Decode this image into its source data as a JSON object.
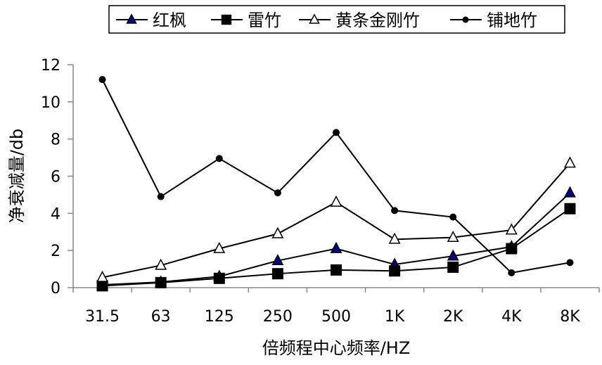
{
  "chart_data": {
    "type": "line",
    "title": "",
    "xlabel": "倍频程中心频率/HZ",
    "ylabel": "净衰减量/db",
    "categories": [
      "31.5",
      "63",
      "125",
      "250",
      "500",
      "1K",
      "2K",
      "4K",
      "8K"
    ],
    "ylim": [
      0,
      12
    ],
    "yticks": [
      0,
      2,
      4,
      6,
      8,
      10,
      12
    ],
    "grid": false,
    "legend_position": "top",
    "series": [
      {
        "name": "红枫",
        "marker": "triangle-filled",
        "color": "#000080",
        "values": [
          0.15,
          0.3,
          0.6,
          1.45,
          2.1,
          1.25,
          1.7,
          2.2,
          5.1
        ]
      },
      {
        "name": "雷竹",
        "marker": "square-filled",
        "color": "#000000",
        "values": [
          0.1,
          0.27,
          0.5,
          0.75,
          0.95,
          0.9,
          1.1,
          2.1,
          4.25
        ]
      },
      {
        "name": "黄条金刚竹",
        "marker": "triangle-open",
        "color": "#ffffff",
        "values": [
          0.55,
          1.2,
          2.1,
          2.9,
          4.6,
          2.6,
          2.7,
          3.1,
          6.7
        ]
      },
      {
        "name": "铺地竹",
        "marker": "circle-filled",
        "color": "#000000",
        "values": [
          11.2,
          4.9,
          6.95,
          5.1,
          8.35,
          4.15,
          3.8,
          0.8,
          1.35
        ]
      }
    ]
  }
}
